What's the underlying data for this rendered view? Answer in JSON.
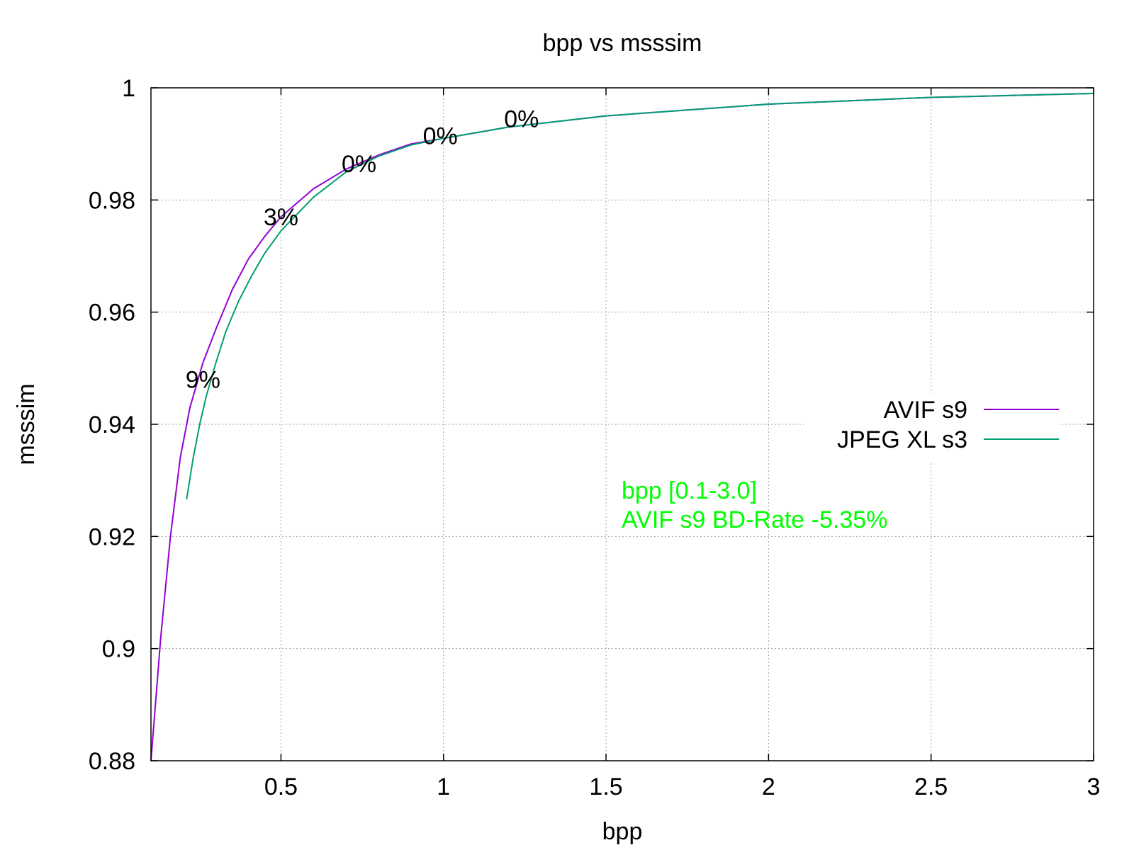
{
  "chart_data": {
    "type": "line",
    "title": "bpp vs msssim",
    "xlabel": "bpp",
    "ylabel": "msssim",
    "xlim": [
      0.1,
      3.0
    ],
    "ylim": [
      0.88,
      1.0
    ],
    "x_ticks": [
      0.5,
      1,
      1.5,
      2,
      2.5,
      3
    ],
    "x_tick_labels": [
      "0.5",
      "1",
      "1.5",
      "2",
      "2.5",
      "3"
    ],
    "y_ticks": [
      0.88,
      0.9,
      0.92,
      0.94,
      0.96,
      0.98,
      1.0
    ],
    "y_tick_labels": [
      "0.88",
      "0.9",
      "0.92",
      "0.94",
      "0.96",
      "0.98",
      "1"
    ],
    "grid": true,
    "legend_position": "right",
    "series": [
      {
        "name": "AVIF s9",
        "color": "#9400d3",
        "x": [
          0.1,
          0.13,
          0.16,
          0.19,
          0.22,
          0.26,
          0.3,
          0.35,
          0.4,
          0.45,
          0.5,
          0.6,
          0.7,
          0.8,
          0.9,
          1.0,
          1.2,
          1.5,
          2.0,
          2.5,
          3.0
        ],
        "y": [
          0.88,
          0.902,
          0.92,
          0.934,
          0.943,
          0.951,
          0.957,
          0.964,
          0.9695,
          0.9735,
          0.977,
          0.982,
          0.9855,
          0.988,
          0.99,
          0.991,
          0.993,
          0.995,
          0.9971,
          0.9983,
          0.999
        ]
      },
      {
        "name": "JPEG XL s3",
        "color": "#009e73",
        "x": [
          0.21,
          0.23,
          0.25,
          0.27,
          0.3,
          0.33,
          0.37,
          0.41,
          0.45,
          0.5,
          0.55,
          0.6,
          0.7,
          0.8,
          0.9,
          1.0,
          1.2,
          1.5,
          2.0,
          2.5,
          3.0
        ],
        "y": [
          0.9267,
          0.934,
          0.94,
          0.945,
          0.951,
          0.9565,
          0.962,
          0.9665,
          0.9705,
          0.9745,
          0.9775,
          0.9805,
          0.985,
          0.9878,
          0.9898,
          0.991,
          0.993,
          0.995,
          0.9971,
          0.9983,
          0.999
        ]
      }
    ],
    "annotations": [
      {
        "text": "9%",
        "x": 0.26,
        "y": 0.948
      },
      {
        "text": "3%",
        "x": 0.5,
        "y": 0.977
      },
      {
        "text": "0%",
        "x": 0.74,
        "y": 0.9865
      },
      {
        "text": "0%",
        "x": 0.99,
        "y": 0.9915
      },
      {
        "text": "0%",
        "x": 1.24,
        "y": 0.9945
      }
    ],
    "info_color": "#00ff00",
    "info_lines": [
      "bpp [0.1-3.0]",
      "AVIF s9 BD-Rate -5.35%"
    ]
  }
}
